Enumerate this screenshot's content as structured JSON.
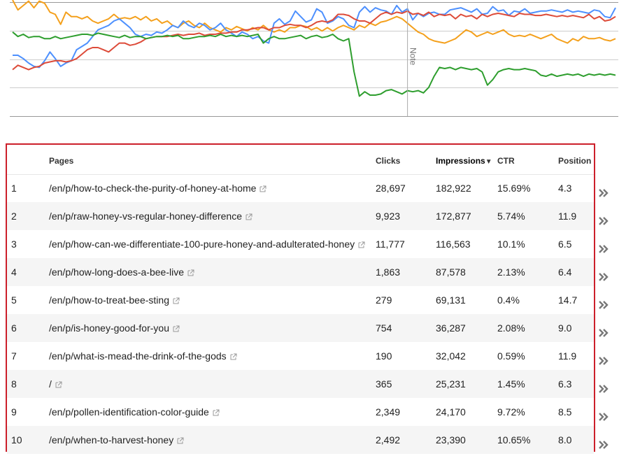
{
  "chart": {
    "note_label": "Note",
    "colors": {
      "blue": "#4d90fe",
      "red": "#dd4b39",
      "orange": "#f4a01c",
      "green": "#2e9e2e"
    }
  },
  "chart_data": {
    "type": "line",
    "grid": true,
    "legend": "none",
    "series": [
      {
        "color": "#4d90fe",
        "values": [
          0.55,
          0.55,
          0.52,
          0.48,
          0.45,
          0.44,
          0.5,
          0.58,
          0.52,
          0.45,
          0.48,
          0.5,
          0.6,
          0.63,
          0.66,
          0.72,
          0.78,
          0.8,
          0.82,
          0.86,
          0.88,
          0.84,
          0.8,
          0.74,
          0.72,
          0.74,
          0.73,
          0.76,
          0.75,
          0.78,
          0.82,
          0.8,
          0.86,
          0.82,
          0.8,
          0.84,
          0.82,
          0.78,
          0.8,
          0.84,
          0.78,
          0.75,
          0.72,
          0.76,
          0.74,
          0.7,
          0.72,
          0.68,
          0.66,
          0.84,
          0.88,
          0.83,
          0.86,
          0.95,
          0.9,
          0.85,
          0.87,
          0.97,
          0.94,
          0.84,
          0.86,
          0.9,
          0.88,
          0.82,
          0.8,
          0.94,
          0.99,
          0.94,
          0.98,
          0.96,
          0.95,
          0.92,
          1.0,
          0.94,
          0.97,
          0.87,
          0.93,
          0.9,
          0.93,
          0.94,
          0.92,
          0.92,
          0.96,
          0.97,
          0.98,
          0.96,
          0.94,
          0.97,
          0.92,
          0.93,
          0.99,
          0.95,
          0.96,
          0.91,
          0.95,
          0.94,
          0.97,
          0.93,
          0.94,
          0.95,
          0.95,
          0.96,
          0.95,
          0.94,
          0.96,
          0.94,
          0.95,
          0.94,
          0.93,
          0.96,
          0.95,
          0.9,
          0.89,
          0.98
        ]
      },
      {
        "color": "#dd4b39",
        "values": [
          0.42,
          0.46,
          0.44,
          0.42,
          0.44,
          0.45,
          0.48,
          0.49,
          0.5,
          0.5,
          0.49,
          0.5,
          0.52,
          0.56,
          0.6,
          0.62,
          0.62,
          0.6,
          0.58,
          0.62,
          0.66,
          0.66,
          0.64,
          0.65,
          0.67,
          0.7,
          0.71,
          0.72,
          0.72,
          0.72,
          0.73,
          0.74,
          0.73,
          0.74,
          0.74,
          0.75,
          0.73,
          0.74,
          0.74,
          0.75,
          0.75,
          0.76,
          0.76,
          0.78,
          0.78,
          0.79,
          0.8,
          0.8,
          0.78,
          0.8,
          0.8,
          0.82,
          0.83,
          0.82,
          0.82,
          0.8,
          0.82,
          0.85,
          0.86,
          0.85,
          0.87,
          0.92,
          0.92,
          0.91,
          0.88,
          0.86,
          0.86,
          0.84,
          0.88,
          0.92,
          0.94,
          0.92,
          0.94,
          0.93,
          0.95,
          0.92,
          0.93,
          0.91,
          0.94,
          0.9,
          0.92,
          0.91,
          0.92,
          0.88,
          0.92,
          0.9,
          0.91,
          0.88,
          0.92,
          0.9,
          0.92,
          0.93,
          0.92,
          0.91,
          0.9,
          0.93,
          0.92,
          0.92,
          0.91,
          0.91,
          0.92,
          0.91,
          0.9,
          0.91,
          0.9,
          0.91,
          0.9,
          0.89,
          0.92,
          0.88,
          0.9,
          0.86,
          0.87,
          0.9
        ]
      },
      {
        "color": "#f4a01c",
        "values": [
          1.05,
          0.96,
          1.0,
          1.04,
          0.98,
          1.04,
          1.02,
          0.94,
          0.92,
          0.83,
          0.94,
          0.9,
          0.9,
          0.88,
          0.9,
          0.86,
          0.84,
          0.86,
          0.88,
          0.92,
          0.88,
          0.89,
          0.88,
          0.9,
          0.87,
          0.9,
          0.86,
          0.88,
          0.84,
          0.86,
          0.82,
          0.8,
          0.84,
          0.86,
          0.82,
          0.8,
          0.84,
          0.8,
          0.78,
          0.76,
          0.8,
          0.78,
          0.81,
          0.79,
          0.77,
          0.8,
          0.78,
          0.82,
          0.78,
          0.76,
          0.78,
          0.76,
          0.8,
          0.8,
          0.82,
          0.81,
          0.78,
          0.8,
          0.77,
          0.8,
          0.77,
          0.8,
          0.82,
          0.8,
          0.78,
          0.82,
          0.8,
          0.84,
          0.82,
          0.85,
          0.86,
          0.88,
          0.9,
          0.88,
          0.84,
          0.8,
          0.76,
          0.74,
          0.7,
          0.68,
          0.67,
          0.66,
          0.68,
          0.7,
          0.74,
          0.78,
          0.76,
          0.72,
          0.74,
          0.76,
          0.74,
          0.76,
          0.78,
          0.74,
          0.72,
          0.73,
          0.72,
          0.74,
          0.72,
          0.7,
          0.72,
          0.74,
          0.7,
          0.68,
          0.66,
          0.7,
          0.68,
          0.72,
          0.7,
          0.7,
          0.71,
          0.69,
          0.68,
          0.7
        ]
      },
      {
        "color": "#2e9e2e",
        "values": [
          0.76,
          0.72,
          0.74,
          0.71,
          0.72,
          0.72,
          0.7,
          0.7,
          0.72,
          0.7,
          0.71,
          0.72,
          0.73,
          0.74,
          0.74,
          0.73,
          0.75,
          0.74,
          0.73,
          0.72,
          0.71,
          0.73,
          0.71,
          0.72,
          0.72,
          0.7,
          0.71,
          0.72,
          0.72,
          0.73,
          0.72,
          0.73,
          0.7,
          0.7,
          0.71,
          0.72,
          0.72,
          0.73,
          0.72,
          0.74,
          0.72,
          0.73,
          0.72,
          0.73,
          0.72,
          0.73,
          0.74,
          0.66,
          0.7,
          0.72,
          0.7,
          0.7,
          0.71,
          0.72,
          0.73,
          0.7,
          0.72,
          0.73,
          0.71,
          0.72,
          0.74,
          0.7,
          0.68,
          0.7,
          0.4,
          0.18,
          0.22,
          0.19,
          0.19,
          0.2,
          0.23,
          0.24,
          0.22,
          0.2,
          0.23,
          0.22,
          0.23,
          0.21,
          0.26,
          0.36,
          0.44,
          0.43,
          0.44,
          0.42,
          0.44,
          0.43,
          0.42,
          0.43,
          0.4,
          0.28,
          0.33,
          0.4,
          0.42,
          0.43,
          0.42,
          0.42,
          0.43,
          0.42,
          0.41,
          0.37,
          0.36,
          0.38,
          0.36,
          0.37,
          0.38,
          0.37,
          0.38,
          0.36,
          0.38,
          0.37,
          0.38,
          0.37,
          0.38,
          0.37
        ]
      }
    ],
    "annotation": {
      "label": "Note",
      "position_fraction": 0.655
    }
  },
  "table": {
    "headers": {
      "num": "",
      "pages": "Pages",
      "clicks": "Clicks",
      "impressions": "Impressions",
      "sort_indicator": "▼",
      "ctr": "CTR",
      "position": "Position"
    },
    "rows": [
      {
        "num": "1",
        "page": "/en/p/how-to-check-the-purity-of-honey-at-home",
        "clicks": "28,697",
        "impressions": "182,922",
        "ctr": "15.69%",
        "position": "4.3"
      },
      {
        "num": "2",
        "page": "/en/p/raw-honey-vs-regular-honey-difference",
        "clicks": "9,923",
        "impressions": "172,877",
        "ctr": "5.74%",
        "position": "11.9"
      },
      {
        "num": "3",
        "page": "/en/p/how-can-we-differentiate-100-pure-honey-and-adulterated-honey",
        "clicks": "11,777",
        "impressions": "116,563",
        "ctr": "10.1%",
        "position": "6.5"
      },
      {
        "num": "4",
        "page": "/en/p/how-long-does-a-bee-live",
        "clicks": "1,863",
        "impressions": "87,578",
        "ctr": "2.13%",
        "position": "6.4"
      },
      {
        "num": "5",
        "page": "/en/p/how-to-treat-bee-sting",
        "clicks": "279",
        "impressions": "69,131",
        "ctr": "0.4%",
        "position": "14.7"
      },
      {
        "num": "6",
        "page": "/en/p/is-honey-good-for-you",
        "clicks": "754",
        "impressions": "36,287",
        "ctr": "2.08%",
        "position": "9.0"
      },
      {
        "num": "7",
        "page": "/en/p/what-is-mead-the-drink-of-the-gods",
        "clicks": "190",
        "impressions": "32,042",
        "ctr": "0.59%",
        "position": "11.9"
      },
      {
        "num": "8",
        "page": "/",
        "clicks": "365",
        "impressions": "25,231",
        "ctr": "1.45%",
        "position": "6.3"
      },
      {
        "num": "9",
        "page": "/en/p/pollen-identification-color-guide",
        "clicks": "2,349",
        "impressions": "24,170",
        "ctr": "9.72%",
        "position": "8.5"
      },
      {
        "num": "10",
        "page": "/en/p/when-to-harvest-honey",
        "clicks": "2,492",
        "impressions": "23,390",
        "ctr": "10.65%",
        "position": "8.0"
      }
    ],
    "row_action_icon": "double-chevron-right-icon",
    "external_link_icon": "external-link-icon",
    "highlight_color": "#cc1f2a"
  }
}
